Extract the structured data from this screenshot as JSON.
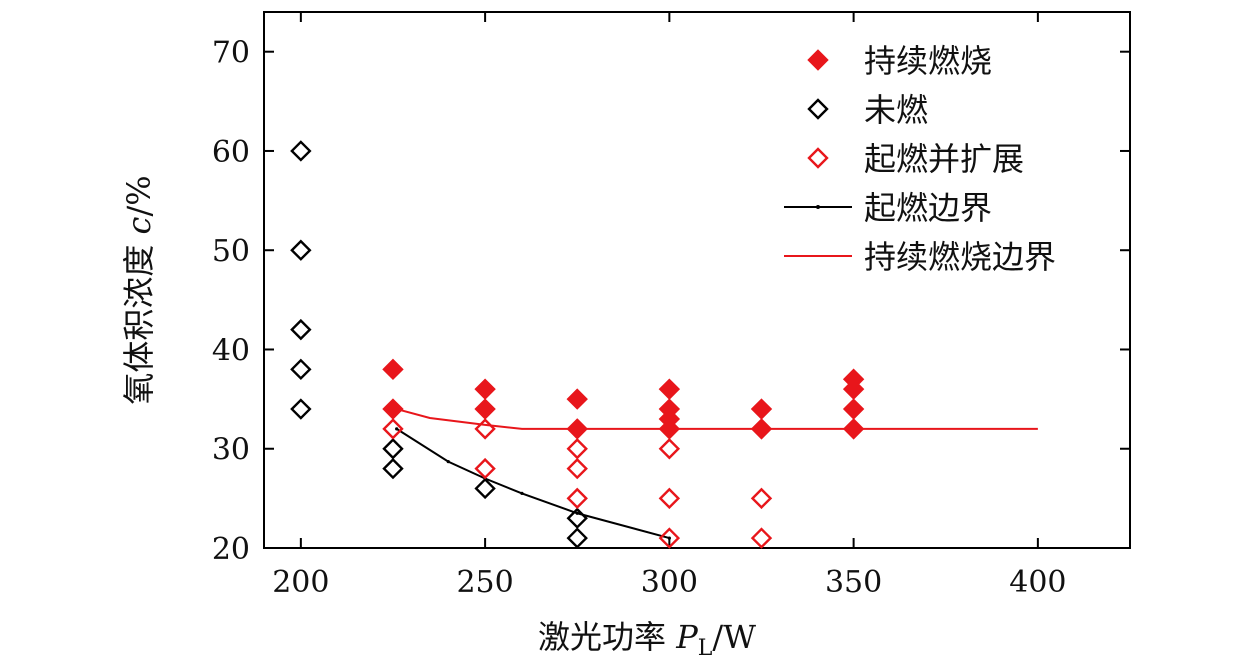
{
  "chart_data": {
    "type": "scatter",
    "xlabel": "激光功率 P_L/W",
    "xlabel_parts": {
      "prefix": "激光功率 ",
      "var": "P",
      "sub": "L",
      "suffix": "/W"
    },
    "ylabel": "氧体积浓度 c/%",
    "ylabel_parts": {
      "prefix": "氧体积浓度 ",
      "var": "c",
      "suffix": "/%"
    },
    "xlim": [
      190,
      425
    ],
    "ylim": [
      20,
      74
    ],
    "x_ticks": [
      200,
      250,
      300,
      350,
      400
    ],
    "y_ticks": [
      20,
      30,
      40,
      50,
      60,
      70
    ],
    "legend_position": "top-right",
    "series": [
      {
        "name": "持续燃烧",
        "kind": "marker",
        "marker": "diamond-filled",
        "color": "#e8161b",
        "points": [
          [
            225,
            38
          ],
          [
            225,
            34
          ],
          [
            250,
            36
          ],
          [
            250,
            34
          ],
          [
            275,
            35
          ],
          [
            275,
            32
          ],
          [
            300,
            36
          ],
          [
            300,
            34
          ],
          [
            300,
            33
          ],
          [
            300,
            32
          ],
          [
            325,
            34
          ],
          [
            325,
            32
          ],
          [
            350,
            37
          ],
          [
            350,
            36
          ],
          [
            350,
            34
          ],
          [
            350,
            32
          ]
        ]
      },
      {
        "name": "未燃",
        "kind": "marker",
        "marker": "diamond-open",
        "color": "#000000",
        "points": [
          [
            200,
            60
          ],
          [
            200,
            50
          ],
          [
            200,
            42
          ],
          [
            200,
            38
          ],
          [
            200,
            34
          ],
          [
            225,
            30
          ],
          [
            225,
            28
          ],
          [
            250,
            26
          ],
          [
            275,
            23
          ],
          [
            275,
            21
          ]
        ]
      },
      {
        "name": "起燃并扩展",
        "kind": "marker",
        "marker": "diamond-open",
        "color": "#e8161b",
        "points": [
          [
            225,
            32
          ],
          [
            250,
            32
          ],
          [
            250,
            28
          ],
          [
            275,
            30
          ],
          [
            275,
            28
          ],
          [
            275,
            25
          ],
          [
            300,
            30
          ],
          [
            300,
            25
          ],
          [
            300,
            21
          ],
          [
            325,
            25
          ],
          [
            325,
            21
          ]
        ]
      },
      {
        "name": "起燃边界",
        "kind": "line",
        "color": "#000000",
        "points": [
          [
            226,
            32
          ],
          [
            240,
            28.7
          ],
          [
            250,
            27
          ],
          [
            260,
            25.5
          ],
          [
            275,
            23.5
          ],
          [
            300,
            21
          ]
        ]
      },
      {
        "name": "持续燃烧边界",
        "kind": "line",
        "color": "#e8161b",
        "points": [
          [
            226,
            34
          ],
          [
            235,
            33.1
          ],
          [
            250,
            32.4
          ],
          [
            260,
            32
          ],
          [
            275,
            32
          ],
          [
            300,
            32
          ],
          [
            350,
            32
          ],
          [
            400,
            32
          ]
        ]
      }
    ]
  }
}
